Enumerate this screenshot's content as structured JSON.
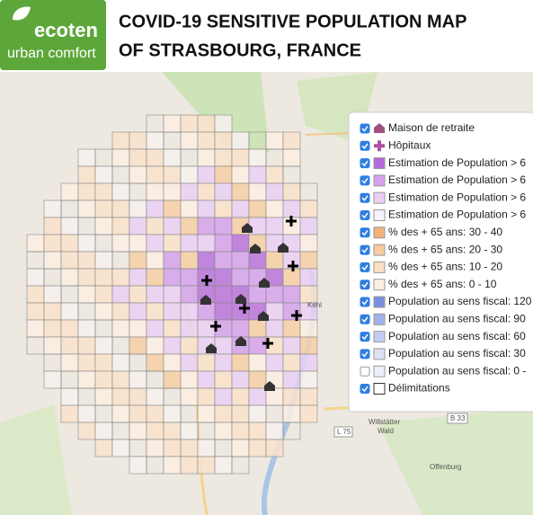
{
  "header": {
    "logo_name": "ecoten",
    "logo_tagline": "urban comfort",
    "title_lines": [
      "COVID-19 SENSITIVE POPULATION MAP",
      "OF STRASBOURG, FRANCE"
    ]
  },
  "legend": {
    "items": [
      {
        "label": "Maison de retraite",
        "swatch": "house",
        "color": "#a0507f",
        "checked": true
      },
      {
        "label": "Hôpitaux",
        "swatch": "cross",
        "color": "#b0509f",
        "checked": true
      },
      {
        "label": "Estimation de Population > 6",
        "swatch": "box",
        "color": "#b56ad9",
        "checked": true
      },
      {
        "label": "Estimation de Population > 6",
        "swatch": "box",
        "color": "#d6a2ec",
        "checked": true
      },
      {
        "label": "Estimation de Population > 6",
        "swatch": "box",
        "color": "#ecd0f4",
        "checked": true
      },
      {
        "label": "Estimation de Population > 6",
        "swatch": "box",
        "color": "#f9f1fb",
        "checked": true
      },
      {
        "label": "% des + 65 ans: 30 - 40",
        "swatch": "box",
        "color": "#f2b27a",
        "checked": true
      },
      {
        "label": "% des + 65 ans: 20 - 30",
        "swatch": "box",
        "color": "#f6cb9e",
        "checked": true
      },
      {
        "label": "% des + 65 ans: 10 - 20",
        "swatch": "box",
        "color": "#f9dfc4",
        "checked": true
      },
      {
        "label": "% des + 65 ans: 0 - 10",
        "swatch": "box",
        "color": "#fdf0e3",
        "checked": true
      },
      {
        "label": "Population au sens fiscal: 120",
        "swatch": "box",
        "color": "#7b8fe0",
        "checked": true
      },
      {
        "label": "Population au sens fiscal: 90",
        "swatch": "box",
        "color": "#a3b2ea",
        "checked": true
      },
      {
        "label": "Population au sens fiscal: 60",
        "swatch": "box",
        "color": "#c3cdf1",
        "checked": true
      },
      {
        "label": "Population au sens fiscal: 30",
        "swatch": "box",
        "color": "#dbe1f6",
        "checked": true
      },
      {
        "label": "Population au sens fiscal: 0 -",
        "swatch": "box",
        "color": "#eef1fb",
        "checked": false
      },
      {
        "label": "Délimitations",
        "swatch": "outline",
        "color": "#333333",
        "checked": true
      }
    ]
  },
  "map_labels": [
    "Kehl",
    "Offenburg",
    "B 33",
    "L 75",
    "Willstätter",
    "Wald"
  ]
}
